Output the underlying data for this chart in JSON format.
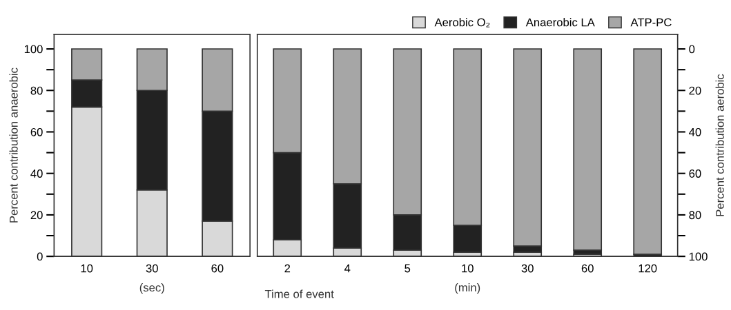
{
  "chart_data": [
    {
      "type": "bar",
      "stacked": true,
      "ylabel": "Percent contribution anaerobic",
      "categories": [
        "10",
        "30",
        "60"
      ],
      "annotations": [
        "(sec)"
      ],
      "ylim": [
        0,
        107
      ],
      "yticks": [
        0,
        {
          "value": 10,
          "label": null
        },
        20,
        {
          "value": 30,
          "label": null
        },
        40,
        {
          "value": 50,
          "label": null
        },
        60,
        {
          "value": 70,
          "label": null
        },
        80,
        {
          "value": 90,
          "label": null
        },
        100
      ],
      "tick_labels": "xy",
      "grid": false,
      "legend": false,
      "series": [
        {
          "color": "#d9d9d9",
          "values": [
            72,
            32,
            17
          ]
        },
        {
          "color": "#222222",
          "values": [
            13,
            48,
            53
          ]
        },
        {
          "color": "#a6a6a6",
          "values": [
            15,
            20,
            30
          ]
        }
      ]
    },
    {
      "type": "bar",
      "stacked": true,
      "xlabel": "Time of event",
      "y2label": "Percent contribution aerobic",
      "categories": [
        "2",
        "4",
        "5",
        "10",
        "30",
        "60",
        "120"
      ],
      "annotations": [
        "(min)"
      ],
      "y2lim": [
        100,
        -7
      ],
      "y2ticks": [
        0,
        {
          "value": 10,
          "label": null
        },
        20,
        {
          "value": 30,
          "label": null
        },
        40,
        {
          "value": 50,
          "label": null
        },
        60,
        {
          "value": 70,
          "label": null
        },
        80,
        {
          "value": 90,
          "label": null
        },
        100
      ],
      "grid": false,
      "legend": "top right",
      "series": [
        {
          "name": "Aerobic O₂",
          "axis": "y2",
          "color": "#d9d9d9",
          "values": [
            8,
            4,
            3,
            2,
            2,
            1,
            0
          ]
        },
        {
          "name": "Anaerobic LA",
          "axis": "y2",
          "color": "#222222",
          "values": [
            42,
            31,
            17,
            13,
            3,
            2,
            1
          ]
        },
        {
          "name": "ATP-PC",
          "axis": "y2",
          "color": "#a6a6a6",
          "values": [
            50,
            65,
            80,
            85,
            95,
            97,
            99
          ]
        }
      ]
    }
  ]
}
